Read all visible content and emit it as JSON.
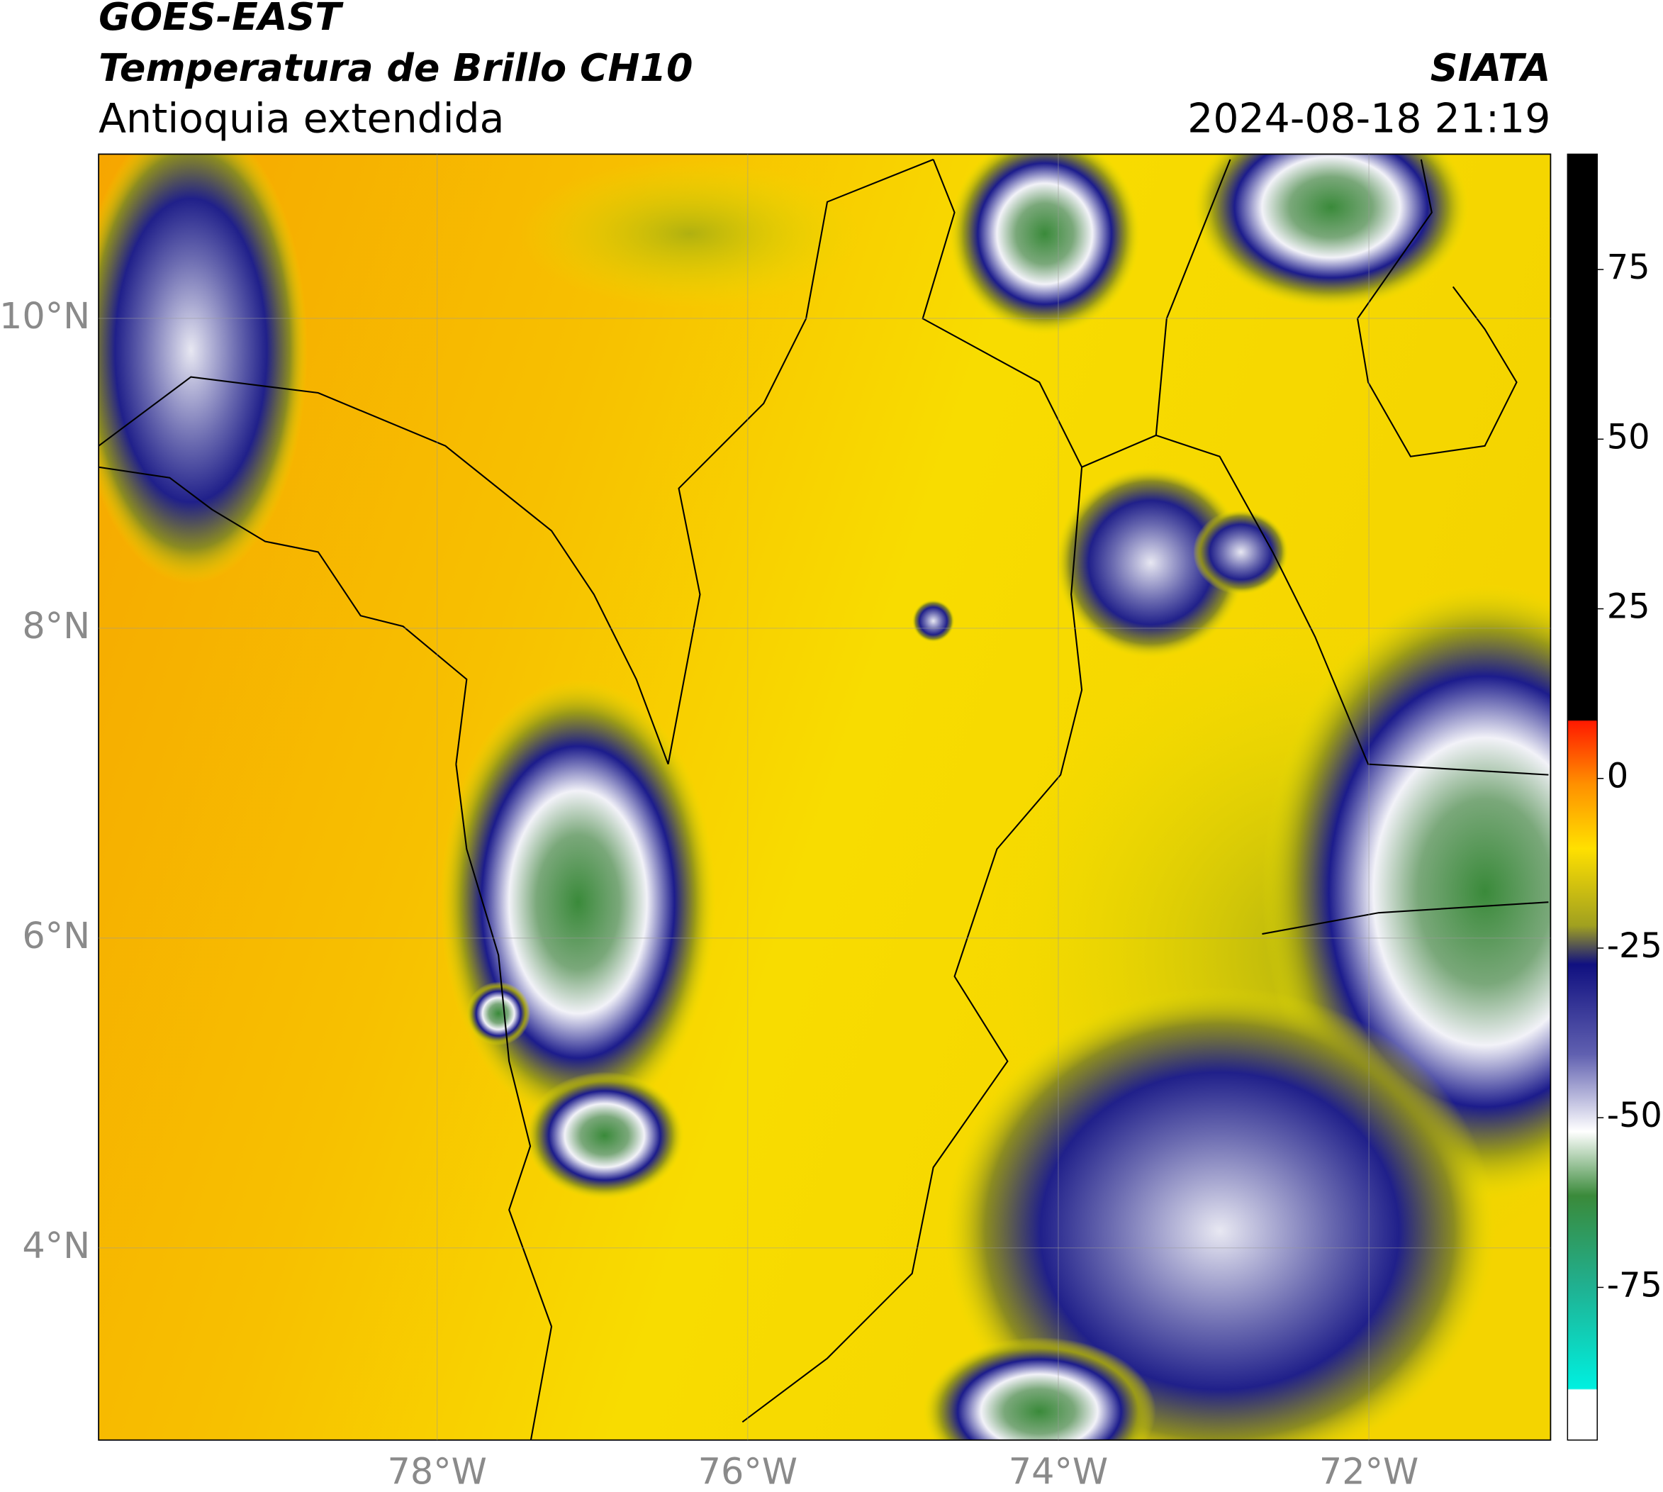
{
  "header": {
    "title": "GOES-EAST",
    "subtitle": "Temperatura de Brillo CH10",
    "region": "Antioquia extendida",
    "source": "SIATA",
    "timestamp": "2024-08-18 21:19"
  },
  "map": {
    "lonlim": [
      -80.18,
      -70.83
    ],
    "latlim": [
      2.76,
      11.06
    ],
    "lon_ticks": [
      {
        "value": -78,
        "label": "78°W"
      },
      {
        "value": -76,
        "label": "76°W"
      },
      {
        "value": -74,
        "label": "74°W"
      },
      {
        "value": -72,
        "label": "72°W"
      }
    ],
    "lat_ticks": [
      {
        "value": 10,
        "label": "10°N"
      },
      {
        "value": 8,
        "label": "8°N"
      },
      {
        "value": 6,
        "label": "6°N"
      },
      {
        "value": 4,
        "label": "4°N"
      }
    ],
    "grid": true
  },
  "colorbar": {
    "lim": [
      -97.5,
      92
    ],
    "ticks": [
      75,
      50,
      25,
      0,
      -25,
      -50,
      -75
    ]
  }
}
